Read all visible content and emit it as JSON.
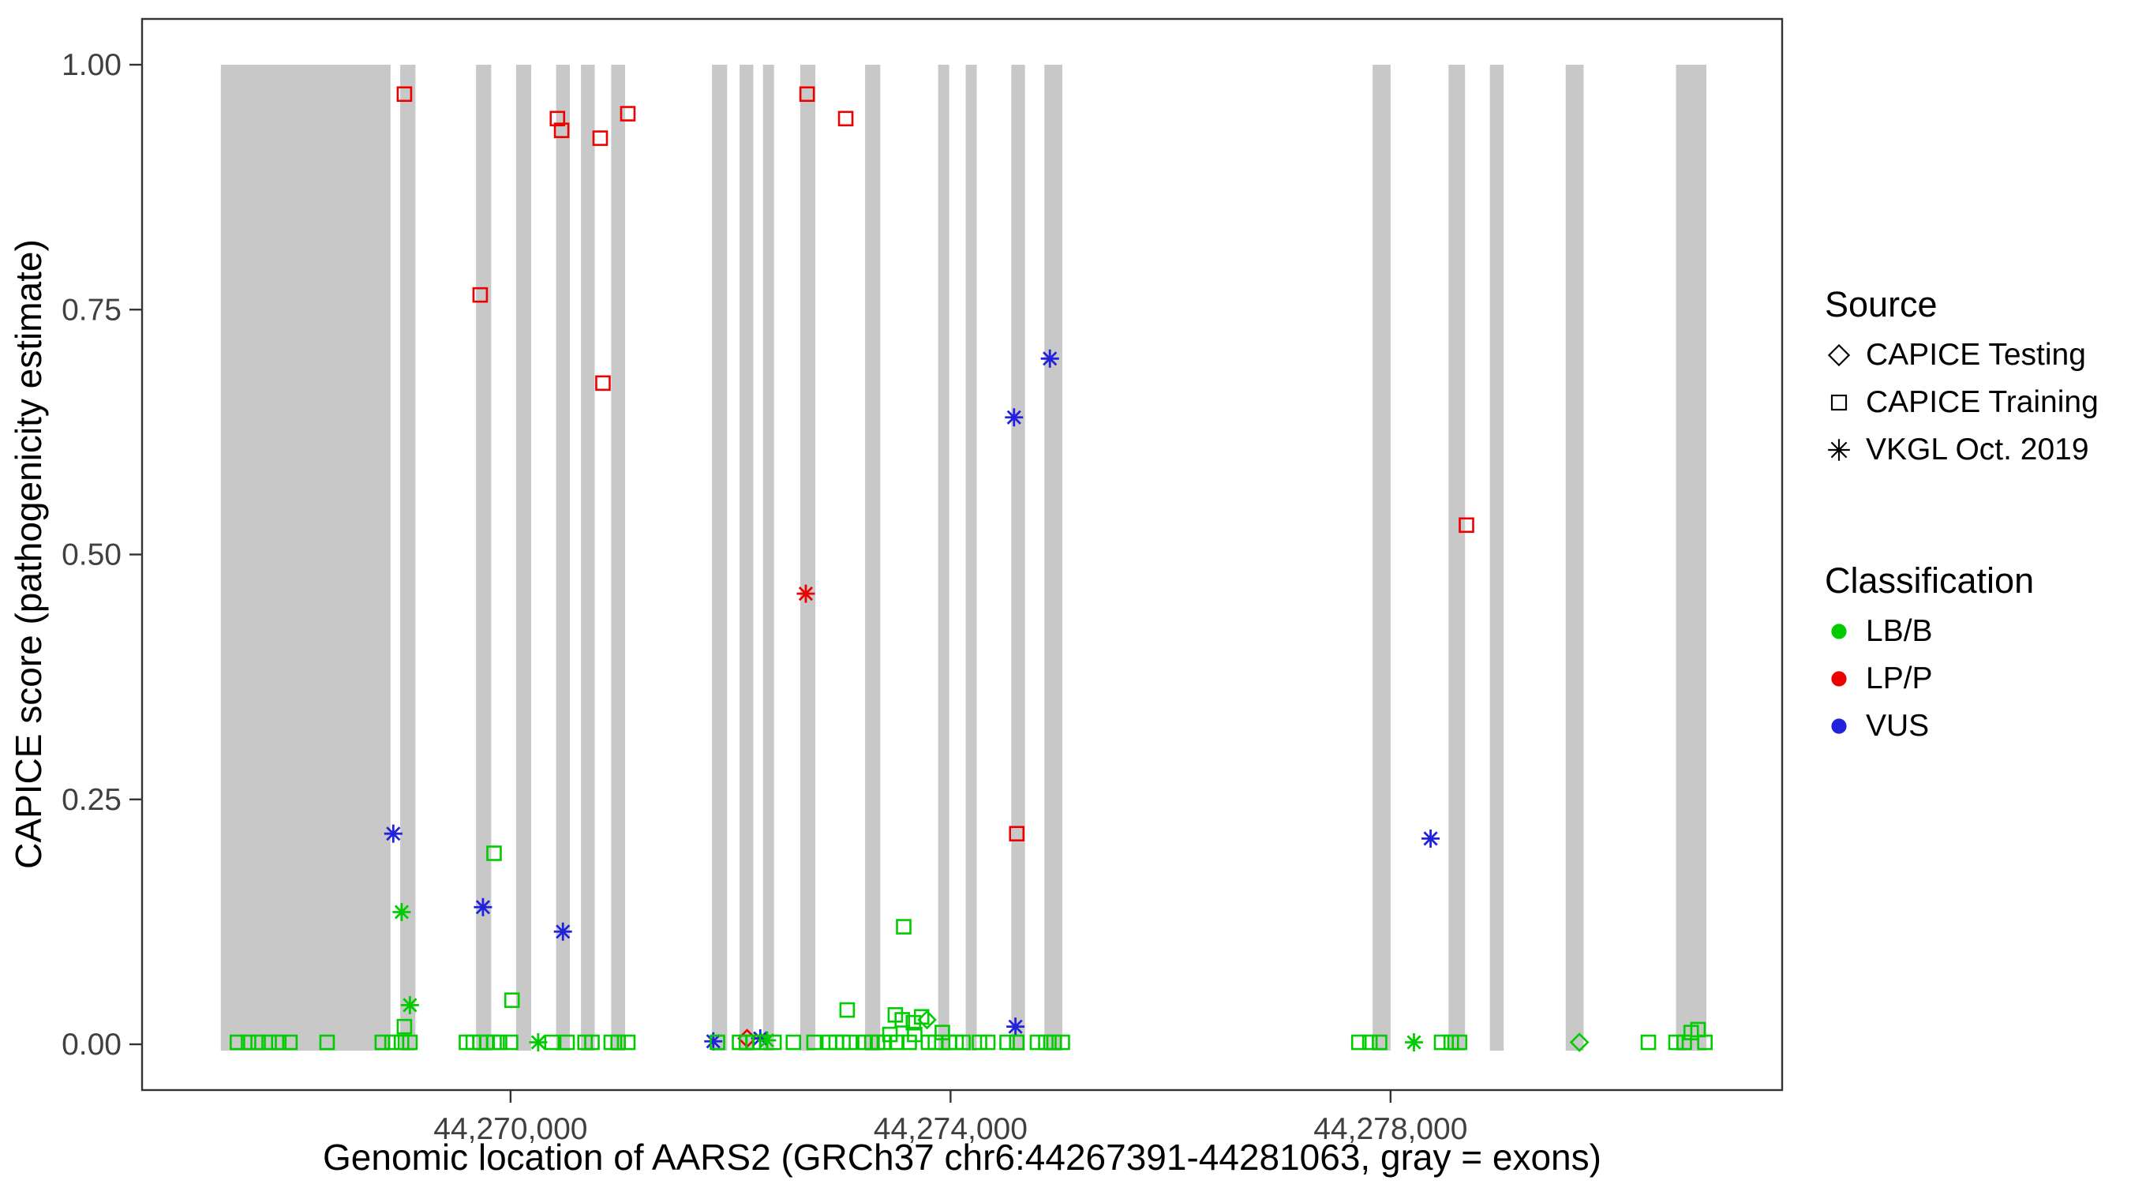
{
  "figure": {
    "background": "#ffffff",
    "exon_color": "#c8c8c8",
    "panel_border_color": "#333333",
    "tick_color": "#333333",
    "tick_label_color": "#404040"
  },
  "legend": {
    "source_title": "Source",
    "source_items": [
      {
        "shape": "diamond",
        "label": "CAPICE Testing"
      },
      {
        "shape": "square",
        "label": "CAPICE Training"
      },
      {
        "shape": "asterisk",
        "label": "VKGL Oct. 2019"
      }
    ],
    "class_title": "Classification",
    "class_items": [
      {
        "key": "LB/B",
        "label": "LB/B"
      },
      {
        "key": "LP/P",
        "label": "LP/P"
      },
      {
        "key": "VUS",
        "label": "VUS"
      }
    ]
  },
  "chart_data": {
    "type": "scatter",
    "xlabel": "Genomic location of AARS2 (GRCh37 chr6:44267391-44281063, gray = exons)",
    "ylabel": "CAPICE score (pathogenicity estimate)",
    "xlim": [
      44266650,
      44281560
    ],
    "ylim": [
      0,
      1
    ],
    "grid": false,
    "legend_position": "right",
    "x_ticks": [
      {
        "value": 44270000,
        "label": "44,270,000"
      },
      {
        "value": 44274000,
        "label": "44,274,000"
      },
      {
        "value": 44278000,
        "label": "44,278,000"
      }
    ],
    "y_ticks": [
      {
        "value": 0.0,
        "label": "0.00"
      },
      {
        "value": 0.25,
        "label": "0.25"
      },
      {
        "value": 0.5,
        "label": "0.50"
      },
      {
        "value": 0.75,
        "label": "0.75"
      },
      {
        "value": 1.0,
        "label": "1.00"
      }
    ],
    "colors": {
      "LB/B": "#00cc00",
      "LP/P": "#ee0000",
      "VUS": "#2222dd"
    },
    "shapes": {
      "testing": "diamond",
      "training": "square",
      "vkgl": "asterisk"
    },
    "exons": [
      [
        44267366,
        44268909
      ],
      [
        44268997,
        44269135
      ],
      [
        44269686,
        44269824
      ],
      [
        44270050,
        44270188
      ],
      [
        44270414,
        44270539
      ],
      [
        44270640,
        44270765
      ],
      [
        44270915,
        44271041
      ],
      [
        44271831,
        44271969
      ],
      [
        44272082,
        44272207
      ],
      [
        44272295,
        44272395
      ],
      [
        44272633,
        44272771
      ],
      [
        44273223,
        44273361
      ],
      [
        44273887,
        44273988
      ],
      [
        44274138,
        44274238
      ],
      [
        44274552,
        44274677
      ],
      [
        44274853,
        44275016
      ],
      [
        44277837,
        44278000
      ],
      [
        44278527,
        44278677
      ],
      [
        44278903,
        44279028
      ],
      [
        44279592,
        44279755
      ],
      [
        44280595,
        44280871
      ]
    ],
    "points": [
      [
        44269035,
        0.97,
        "LP/P",
        "training"
      ],
      [
        44269724,
        0.765,
        "LP/P",
        "training"
      ],
      [
        44270426,
        0.945,
        "LP/P",
        "training"
      ],
      [
        44270464,
        0.933,
        "LP/P",
        "training"
      ],
      [
        44270815,
        0.925,
        "LP/P",
        "training"
      ],
      [
        44270840,
        0.675,
        "LP/P",
        "training"
      ],
      [
        44271066,
        0.95,
        "LP/P",
        "training"
      ],
      [
        44272696,
        0.97,
        "LP/P",
        "training"
      ],
      [
        44273047,
        0.945,
        "LP/P",
        "training"
      ],
      [
        44274602,
        0.215,
        "LP/P",
        "training"
      ],
      [
        44278690,
        0.53,
        "LP/P",
        "training"
      ],
      [
        44272684,
        0.46,
        "LP/P",
        "vkgl"
      ],
      [
        44272150,
        0.006,
        "LP/P",
        "testing"
      ],
      [
        44268934,
        0.215,
        "VUS",
        "vkgl"
      ],
      [
        44269749,
        0.14,
        "VUS",
        "vkgl"
      ],
      [
        44270476,
        0.115,
        "VUS",
        "vkgl"
      ],
      [
        44274577,
        0.64,
        "VUS",
        "vkgl"
      ],
      [
        44274903,
        0.7,
        "VUS",
        "vkgl"
      ],
      [
        44278364,
        0.21,
        "VUS",
        "vkgl"
      ],
      [
        44271843,
        0.003,
        "VUS",
        "vkgl"
      ],
      [
        44272270,
        0.006,
        "VUS",
        "vkgl"
      ],
      [
        44274590,
        0.018,
        "VUS",
        "vkgl"
      ],
      [
        44269010,
        0.135,
        "LB/B",
        "vkgl"
      ],
      [
        44269085,
        0.04,
        "LB/B",
        "vkgl"
      ],
      [
        44270251,
        0.002,
        "LB/B",
        "vkgl"
      ],
      [
        44272332,
        0.004,
        "LB/B",
        "vkgl"
      ],
      [
        44278213,
        0.002,
        "LB/B",
        "vkgl"
      ],
      [
        44273786,
        0.025,
        "LB/B",
        "testing"
      ],
      [
        44279717,
        0.002,
        "LB/B",
        "testing"
      ],
      [
        44269850,
        0.195,
        "LB/B",
        "training"
      ],
      [
        44270013,
        0.045,
        "LB/B",
        "training"
      ],
      [
        44269035,
        0.018,
        "LB/B",
        "training"
      ],
      [
        44273060,
        0.035,
        "LB/B",
        "training"
      ],
      [
        44273574,
        0.12,
        "LB/B",
        "training"
      ],
      [
        44273498,
        0.03,
        "LB/B",
        "training"
      ],
      [
        44273561,
        0.025,
        "LB/B",
        "training"
      ],
      [
        44273662,
        0.022,
        "LB/B",
        "training"
      ],
      [
        44273737,
        0.028,
        "LB/B",
        "training"
      ],
      [
        44273925,
        0.012,
        "LB/B",
        "training"
      ],
      [
        44267517,
        0.002,
        "LB/B",
        "training"
      ],
      [
        44267618,
        0.002,
        "LB/B",
        "training"
      ],
      [
        44267705,
        0.002,
        "LB/B",
        "training"
      ],
      [
        44267805,
        0.002,
        "LB/B",
        "training"
      ],
      [
        44267893,
        0.002,
        "LB/B",
        "training"
      ],
      [
        44267994,
        0.002,
        "LB/B",
        "training"
      ],
      [
        44268332,
        0.002,
        "LB/B",
        "training"
      ],
      [
        44268834,
        0.002,
        "LB/B",
        "training"
      ],
      [
        44268922,
        0.002,
        "LB/B",
        "training"
      ],
      [
        44269009,
        0.002,
        "LB/B",
        "training"
      ],
      [
        44269085,
        0.002,
        "LB/B",
        "training"
      ],
      [
        44269599,
        0.002,
        "LB/B",
        "training"
      ],
      [
        44269661,
        0.002,
        "LB/B",
        "training"
      ],
      [
        44269724,
        0.002,
        "LB/B",
        "training"
      ],
      [
        44269787,
        0.002,
        "LB/B",
        "training"
      ],
      [
        44269850,
        0.002,
        "LB/B",
        "training"
      ],
      [
        44269900,
        0.002,
        "LB/B",
        "training"
      ],
      [
        44270000,
        0.002,
        "LB/B",
        "training"
      ],
      [
        44270376,
        0.002,
        "LB/B",
        "training"
      ],
      [
        44270514,
        0.002,
        "LB/B",
        "training"
      ],
      [
        44270677,
        0.002,
        "LB/B",
        "training"
      ],
      [
        44270740,
        0.002,
        "LB/B",
        "training"
      ],
      [
        44270915,
        0.002,
        "LB/B",
        "training"
      ],
      [
        44270978,
        0.002,
        "LB/B",
        "training"
      ],
      [
        44271066,
        0.002,
        "LB/B",
        "training"
      ],
      [
        44271881,
        0.002,
        "LB/B",
        "training"
      ],
      [
        44272082,
        0.002,
        "LB/B",
        "training"
      ],
      [
        44272144,
        0.002,
        "LB/B",
        "training"
      ],
      [
        44272207,
        0.002,
        "LB/B",
        "training"
      ],
      [
        44272270,
        0.002,
        "LB/B",
        "training"
      ],
      [
        44272395,
        0.002,
        "LB/B",
        "training"
      ],
      [
        44272571,
        0.002,
        "LB/B",
        "training"
      ],
      [
        44272759,
        0.002,
        "LB/B",
        "training"
      ],
      [
        44272897,
        0.002,
        "LB/B",
        "training"
      ],
      [
        44272960,
        0.002,
        "LB/B",
        "training"
      ],
      [
        44273022,
        0.002,
        "LB/B",
        "training"
      ],
      [
        44273085,
        0.002,
        "LB/B",
        "training"
      ],
      [
        44273223,
        0.002,
        "LB/B",
        "training"
      ],
      [
        44273285,
        0.002,
        "LB/B",
        "training"
      ],
      [
        44273336,
        0.002,
        "LB/B",
        "training"
      ],
      [
        44273398,
        0.002,
        "LB/B",
        "training"
      ],
      [
        44273449,
        0.01,
        "LB/B",
        "training"
      ],
      [
        44273511,
        0.002,
        "LB/B",
        "training"
      ],
      [
        44273624,
        0.002,
        "LB/B",
        "training"
      ],
      [
        44273674,
        0.01,
        "LB/B",
        "training"
      ],
      [
        44273799,
        0.002,
        "LB/B",
        "training"
      ],
      [
        44273862,
        0.002,
        "LB/B",
        "training"
      ],
      [
        44273988,
        0.002,
        "LB/B",
        "training"
      ],
      [
        44274050,
        0.002,
        "LB/B",
        "training"
      ],
      [
        44274113,
        0.002,
        "LB/B",
        "training"
      ],
      [
        44274263,
        0.002,
        "LB/B",
        "training"
      ],
      [
        44274338,
        0.002,
        "LB/B",
        "training"
      ],
      [
        44274514,
        0.002,
        "LB/B",
        "training"
      ],
      [
        44274602,
        0.002,
        "LB/B",
        "training"
      ],
      [
        44274790,
        0.002,
        "LB/B",
        "training"
      ],
      [
        44274866,
        0.002,
        "LB/B",
        "training"
      ],
      [
        44274941,
        0.002,
        "LB/B",
        "training"
      ],
      [
        44275016,
        0.002,
        "LB/B",
        "training"
      ],
      [
        44277712,
        0.002,
        "LB/B",
        "training"
      ],
      [
        44277812,
        0.002,
        "LB/B",
        "training"
      ],
      [
        44277900,
        0.002,
        "LB/B",
        "training"
      ],
      [
        44278464,
        0.002,
        "LB/B",
        "training"
      ],
      [
        44278552,
        0.002,
        "LB/B",
        "training"
      ],
      [
        44278627,
        0.002,
        "LB/B",
        "training"
      ],
      [
        44280344,
        0.002,
        "LB/B",
        "training"
      ],
      [
        44280595,
        0.002,
        "LB/B",
        "training"
      ],
      [
        44280670,
        0.002,
        "LB/B",
        "training"
      ],
      [
        44280733,
        0.012,
        "LB/B",
        "training"
      ],
      [
        44280795,
        0.015,
        "LB/B",
        "training"
      ],
      [
        44280858,
        0.002,
        "LB/B",
        "training"
      ]
    ]
  }
}
